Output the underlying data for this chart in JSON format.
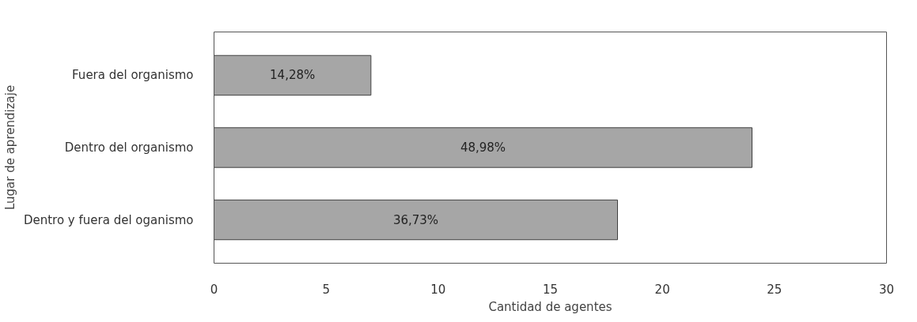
{
  "chart_data": {
    "type": "bar",
    "orientation": "horizontal",
    "categories": [
      "Fuera del organismo",
      "Dentro del organismo",
      "Dentro y fuera del oganismo"
    ],
    "values": [
      7,
      24,
      18
    ],
    "color": "#a6a6a6",
    "annotations": [
      "14,28%",
      "48,98%",
      "36,73%"
    ],
    "xlabel": "Cantidad de agentes",
    "ylabel": "Lugar de aprendizaje",
    "xlim": [
      0,
      30
    ],
    "xticks": [
      0,
      5,
      10,
      15,
      20,
      25,
      30
    ],
    "grid": false
  }
}
